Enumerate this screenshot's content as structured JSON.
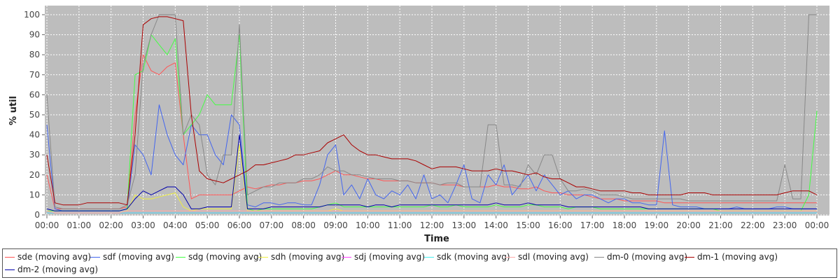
{
  "chart_data": {
    "type": "line",
    "xlabel": "Time",
    "ylabel": "% util",
    "ylim": [
      0,
      100
    ],
    "yticks": [
      0,
      10,
      20,
      30,
      40,
      50,
      60,
      70,
      80,
      90,
      100
    ],
    "x_ticks": [
      "00:00",
      "01:00",
      "02:00",
      "03:00",
      "04:00",
      "05:00",
      "06:00",
      "07:00",
      "08:00",
      "09:00",
      "10:00",
      "11:00",
      "12:00",
      "13:00",
      "14:00",
      "15:00",
      "16:00",
      "17:00",
      "18:00",
      "19:00",
      "20:00",
      "21:00",
      "22:00",
      "23:00",
      "00:00"
    ],
    "x_unit": "hours",
    "x": [
      0.0,
      0.25,
      0.5,
      0.75,
      1.0,
      1.25,
      1.5,
      1.75,
      2.0,
      2.25,
      2.5,
      2.75,
      3.0,
      3.25,
      3.5,
      3.75,
      4.0,
      4.25,
      4.5,
      4.75,
      5.0,
      5.25,
      5.5,
      5.75,
      6.0,
      6.25,
      6.5,
      6.75,
      7.0,
      7.25,
      7.5,
      7.75,
      8.0,
      8.25,
      8.5,
      8.75,
      9.0,
      9.25,
      9.5,
      9.75,
      10.0,
      10.25,
      10.5,
      10.75,
      11.0,
      11.25,
      11.5,
      11.75,
      12.0,
      12.25,
      12.5,
      12.75,
      13.0,
      13.25,
      13.5,
      13.75,
      14.0,
      14.25,
      14.5,
      14.75,
      15.0,
      15.25,
      15.5,
      15.75,
      16.0,
      16.25,
      16.5,
      16.75,
      17.0,
      17.25,
      17.5,
      17.75,
      18.0,
      18.25,
      18.5,
      18.75,
      19.0,
      19.25,
      19.5,
      19.75,
      20.0,
      20.25,
      20.5,
      20.75,
      21.0,
      21.25,
      21.5,
      21.75,
      22.0,
      22.25,
      22.5,
      22.75,
      23.0,
      23.25,
      23.5,
      23.75,
      24.0
    ],
    "grid": true,
    "legend_position": "bottom",
    "series": [
      {
        "name": "sde (moving avg)",
        "color": "#ff5555",
        "values": [
          20,
          3,
          3,
          3,
          3,
          3,
          3,
          3,
          3,
          3,
          4,
          50,
          80,
          72,
          70,
          74,
          76,
          40,
          8,
          10,
          10,
          10,
          10,
          10,
          12,
          14,
          13,
          14,
          15,
          15,
          16,
          16,
          17,
          17,
          18,
          20,
          22,
          20,
          20,
          19,
          18,
          18,
          17,
          17,
          17,
          17,
          16,
          16,
          16,
          15,
          15,
          15,
          14,
          14,
          14,
          14,
          15,
          14,
          14,
          13,
          13,
          14,
          12,
          11,
          11,
          10,
          10,
          10,
          9,
          8,
          8,
          8,
          7,
          7,
          7,
          7,
          7,
          6,
          6,
          6,
          6,
          6,
          6,
          6,
          6,
          6,
          6,
          6,
          6,
          6,
          6,
          6,
          6,
          6,
          6,
          6,
          6
        ]
      },
      {
        "name": "sdf (moving avg)",
        "color": "#4466ee",
        "values": [
          45,
          3,
          2,
          2,
          2,
          2,
          2,
          2,
          2,
          2,
          3,
          35,
          30,
          20,
          55,
          40,
          30,
          25,
          45,
          40,
          40,
          30,
          25,
          50,
          45,
          5,
          4,
          6,
          6,
          5,
          6,
          6,
          5,
          5,
          15,
          30,
          35,
          10,
          15,
          8,
          18,
          10,
          8,
          12,
          10,
          15,
          8,
          20,
          8,
          10,
          6,
          15,
          25,
          8,
          6,
          20,
          15,
          25,
          10,
          15,
          20,
          12,
          20,
          15,
          10,
          12,
          8,
          10,
          10,
          8,
          6,
          8,
          8,
          6,
          6,
          5,
          5,
          42,
          5,
          4,
          4,
          4,
          3,
          3,
          3,
          3,
          4,
          3,
          3,
          3,
          3,
          4,
          4,
          3,
          3,
          3,
          3
        ]
      },
      {
        "name": "sdg (moving avg)",
        "color": "#44ff44",
        "values": [
          2,
          2,
          2,
          2,
          2,
          2,
          2,
          2,
          2,
          2,
          3,
          70,
          72,
          90,
          85,
          80,
          88,
          40,
          45,
          50,
          60,
          55,
          55,
          55,
          90,
          3,
          2,
          3,
          3,
          3,
          3,
          3,
          3,
          3,
          4,
          5,
          6,
          4,
          4,
          4,
          4,
          4,
          4,
          4,
          4,
          4,
          4,
          4,
          5,
          4,
          4,
          5,
          4,
          4,
          4,
          4,
          5,
          4,
          4,
          4,
          5,
          5,
          4,
          4,
          4,
          3,
          4,
          4,
          4,
          3,
          3,
          3,
          3,
          3,
          3,
          3,
          3,
          3,
          3,
          3,
          3,
          3,
          3,
          3,
          2,
          2,
          2,
          2,
          2,
          2,
          2,
          2,
          2,
          2,
          2,
          10,
          52
        ]
      },
      {
        "name": "sdh (moving avg)",
        "color": "#eeee44",
        "values": [
          2,
          1,
          1,
          1,
          1,
          1,
          1,
          1,
          1,
          1,
          2,
          10,
          8,
          8,
          9,
          10,
          11,
          4,
          2,
          3,
          3,
          3,
          3,
          3,
          35,
          2,
          2,
          2,
          2,
          2,
          2,
          2,
          2,
          2,
          2,
          2,
          3,
          2,
          2,
          2,
          2,
          2,
          2,
          2,
          2,
          2,
          2,
          2,
          2,
          2,
          2,
          2,
          2,
          2,
          2,
          2,
          2,
          2,
          2,
          2,
          2,
          2,
          2,
          2,
          2,
          2,
          2,
          2,
          2,
          2,
          2,
          2,
          2,
          2,
          2,
          2,
          2,
          2,
          2,
          2,
          2,
          2,
          2,
          2,
          2,
          2,
          2,
          2,
          2,
          2,
          2,
          2,
          2,
          2,
          2,
          2,
          2
        ]
      },
      {
        "name": "sdj (moving avg)",
        "color": "#ff44ff",
        "values": [
          1,
          1,
          1,
          1,
          1,
          1,
          1,
          1,
          1,
          1,
          1,
          1,
          1,
          1,
          1,
          1,
          1,
          1,
          1,
          1,
          1,
          1,
          1,
          1,
          1,
          1,
          1,
          1,
          1,
          1,
          1,
          1,
          1,
          1,
          1,
          1,
          1,
          1,
          1,
          1,
          1,
          1,
          1,
          1,
          1,
          1,
          1,
          1,
          1,
          1,
          1,
          1,
          1,
          1,
          1,
          1,
          1,
          1,
          1,
          1,
          1,
          1,
          1,
          1,
          1,
          1,
          1,
          1,
          1,
          1,
          1,
          1,
          1,
          1,
          1,
          1,
          1,
          1,
          1,
          1,
          1,
          1,
          1,
          1,
          1,
          1,
          1,
          1,
          1,
          1,
          1,
          1,
          1,
          1,
          1,
          1,
          1
        ]
      },
      {
        "name": "sdk (moving avg)",
        "color": "#44eeee",
        "values": [
          1,
          1,
          1,
          1,
          1,
          1,
          1,
          1,
          1,
          1,
          1,
          1,
          1,
          1,
          1,
          1,
          1,
          1,
          1,
          1,
          1,
          1,
          1,
          1,
          1,
          1,
          1,
          1,
          1,
          1,
          1,
          1,
          1,
          1,
          1,
          1,
          1,
          1,
          1,
          1,
          1,
          1,
          1,
          1,
          1,
          1,
          1,
          1,
          1,
          1,
          1,
          1,
          1,
          1,
          1,
          1,
          1,
          1,
          1,
          1,
          1,
          1,
          1,
          1,
          1,
          1,
          1,
          1,
          1,
          1,
          1,
          1,
          1,
          1,
          1,
          1,
          1,
          1,
          1,
          1,
          1,
          1,
          1,
          1,
          1,
          1,
          1,
          1,
          1,
          1,
          1,
          1,
          1,
          1,
          1,
          1,
          1
        ]
      },
      {
        "name": "sdl (moving avg)",
        "color": "#ffaaaa",
        "values": [
          2,
          1,
          1,
          1,
          1,
          1,
          1,
          1,
          1,
          1,
          2,
          2,
          2,
          2,
          2,
          2,
          2,
          2,
          2,
          2,
          2,
          2,
          2,
          2,
          2,
          2,
          2,
          2,
          2,
          2,
          2,
          2,
          2,
          2,
          2,
          2,
          2,
          2,
          2,
          2,
          2,
          2,
          2,
          2,
          2,
          2,
          2,
          2,
          2,
          2,
          2,
          2,
          2,
          2,
          2,
          2,
          2,
          2,
          2,
          2,
          2,
          2,
          2,
          2,
          2,
          2,
          2,
          2,
          2,
          2,
          2,
          2,
          2,
          2,
          2,
          2,
          2,
          2,
          2,
          2,
          2,
          2,
          2,
          2,
          2,
          2,
          2,
          2,
          2,
          2,
          2,
          2,
          2,
          2,
          2,
          2,
          2
        ]
      },
      {
        "name": "dm-0 (moving avg)",
        "color": "#888888",
        "values": [
          60,
          4,
          3,
          3,
          3,
          3,
          3,
          3,
          3,
          3,
          5,
          20,
          75,
          90,
          100,
          100,
          100,
          40,
          50,
          45,
          20,
          15,
          30,
          30,
          95,
          10,
          12,
          14,
          14,
          16,
          16,
          16,
          18,
          18,
          20,
          24,
          22,
          22,
          20,
          20,
          19,
          18,
          18,
          18,
          17,
          17,
          16,
          16,
          16,
          15,
          16,
          16,
          14,
          14,
          14,
          45,
          45,
          15,
          15,
          14,
          25,
          20,
          30,
          30,
          18,
          12,
          12,
          13,
          12,
          10,
          10,
          10,
          9,
          8,
          8,
          8,
          8,
          8,
          8,
          8,
          7,
          7,
          7,
          7,
          7,
          7,
          7,
          7,
          7,
          7,
          7,
          7,
          25,
          8,
          8,
          100,
          100
        ]
      },
      {
        "name": "dm-1 (moving avg)",
        "color": "#aa0000",
        "values": [
          30,
          6,
          5,
          5,
          5,
          6,
          6,
          6,
          6,
          6,
          5,
          40,
          95,
          98,
          99,
          99,
          98,
          97,
          50,
          22,
          18,
          17,
          16,
          18,
          20,
          22,
          25,
          25,
          26,
          27,
          28,
          30,
          30,
          31,
          32,
          36,
          38,
          40,
          35,
          32,
          30,
          30,
          29,
          28,
          28,
          28,
          27,
          25,
          23,
          24,
          24,
          24,
          23,
          22,
          22,
          22,
          23,
          22,
          22,
          21,
          20,
          21,
          19,
          18,
          18,
          16,
          14,
          14,
          13,
          12,
          12,
          12,
          12,
          11,
          11,
          10,
          10,
          10,
          10,
          10,
          11,
          11,
          11,
          10,
          10,
          10,
          10,
          10,
          10,
          10,
          10,
          10,
          11,
          12,
          12,
          12,
          10
        ]
      },
      {
        "name": "dm-2 (moving avg)",
        "color": "#0000aa",
        "values": [
          3,
          2,
          2,
          2,
          2,
          2,
          2,
          2,
          2,
          2,
          3,
          8,
          12,
          10,
          12,
          14,
          14,
          10,
          3,
          3,
          4,
          4,
          4,
          4,
          40,
          3,
          3,
          3,
          4,
          4,
          4,
          4,
          4,
          4,
          4,
          5,
          5,
          5,
          5,
          5,
          4,
          5,
          5,
          4,
          5,
          5,
          5,
          5,
          5,
          5,
          5,
          5,
          5,
          5,
          5,
          5,
          6,
          5,
          5,
          5,
          6,
          5,
          5,
          5,
          5,
          4,
          4,
          4,
          4,
          4,
          4,
          4,
          4,
          4,
          4,
          3,
          3,
          3,
          3,
          3,
          3,
          3,
          3,
          3,
          3,
          3,
          3,
          3,
          3,
          3,
          3,
          3,
          3,
          3,
          3,
          3,
          3
        ]
      }
    ]
  }
}
